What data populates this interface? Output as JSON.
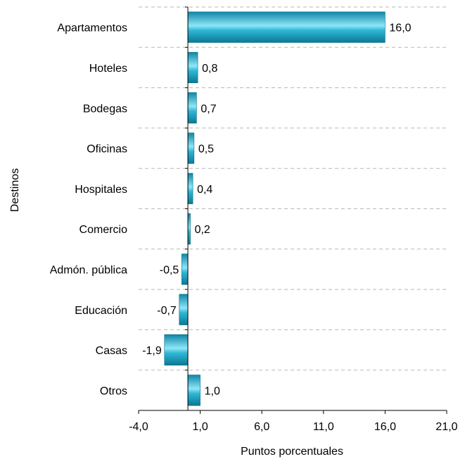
{
  "chart_data": {
    "type": "bar",
    "orientation": "horizontal",
    "categories": [
      "Apartamentos",
      "Hoteles",
      "Bodegas",
      "Oficinas",
      "Hospitales",
      "Comercio",
      "Admón. pública",
      "Educación",
      "Casas",
      "Otros"
    ],
    "values": [
      16.0,
      0.8,
      0.7,
      0.5,
      0.4,
      0.2,
      -0.5,
      -0.7,
      -1.9,
      1.0
    ],
    "value_labels": [
      "16,0",
      "0,8",
      "0,7",
      "0,5",
      "0,4",
      "0,2",
      "-0,5",
      "-0,7",
      "-1,9",
      "1,0"
    ],
    "xlabel": "Puntos porcentuales",
    "ylabel": "Destinos",
    "xlim": [
      -4.0,
      21.0
    ],
    "xticks": [
      -4.0,
      1.0,
      6.0,
      11.0,
      16.0,
      21.0
    ],
    "xtick_labels": [
      "-4,0",
      "1,0",
      "6,0",
      "11,0",
      "16,0",
      "21,0"
    ],
    "grid": "horizontal dashed separators between categories",
    "bar_color": "#1aa6c8",
    "bar_highlight": "#8fe6f7",
    "bar_shadow": "#0b7893"
  }
}
